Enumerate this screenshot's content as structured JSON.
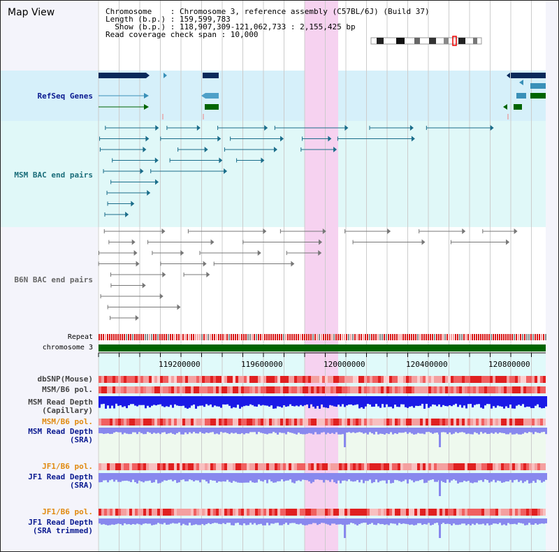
{
  "page": {
    "title": "Map View"
  },
  "info": {
    "lines": [
      "Chromosome    : Chromosome 3, reference assembly (C57BL/6J) (Build 37)",
      "Length (b.p.) : 159,599,783",
      "  Show (b.p.) : 118,907,309-121,062,733 : 2,155,425 bp",
      "Read coverage check span : 10,000"
    ]
  },
  "tracks": {
    "refseq": "RefSeq Genes",
    "msm_bac": "MSM BAC end pairs",
    "b6n_bac": "B6N BAC end pairs",
    "repeat": "Repeat",
    "chromosome": "chromosome 3",
    "dbsnp": "dbSNP(Mouse)",
    "msm_b6_pol_1": "MSM/B6 pol.",
    "msm_depth_cap_1": "MSM Read Depth",
    "msm_depth_cap_2": "(Capillary)",
    "msm_b6_pol_2": "MSM/B6 pol.",
    "msm_depth_sra_1": "MSM Read Depth",
    "msm_depth_sra_2": "(SRA)",
    "jf1_b6_pol_1": "JF1/B6 pol.",
    "jf1_depth_sra_1": "JF1 Read Depth",
    "jf1_depth_sra_2": "(SRA)",
    "jf1_b6_pol_2": "JF1/B6 pol.",
    "jf1_depth_trim_1": "JF1 Read Depth",
    "jf1_depth_trim_2": "(SRA trimmed)"
  },
  "axis": {
    "ticks": [
      "119200000",
      "119600000",
      "120000000",
      "120400000",
      "120800000"
    ]
  },
  "colors": {
    "refseq_bg": "#d6f0fa",
    "bac_bg": "#e0f8f8",
    "highlight": "#f6d2f0",
    "chromosome": "#006400",
    "depth": "#1a1ae6",
    "depth_light": "#8888ee"
  }
}
